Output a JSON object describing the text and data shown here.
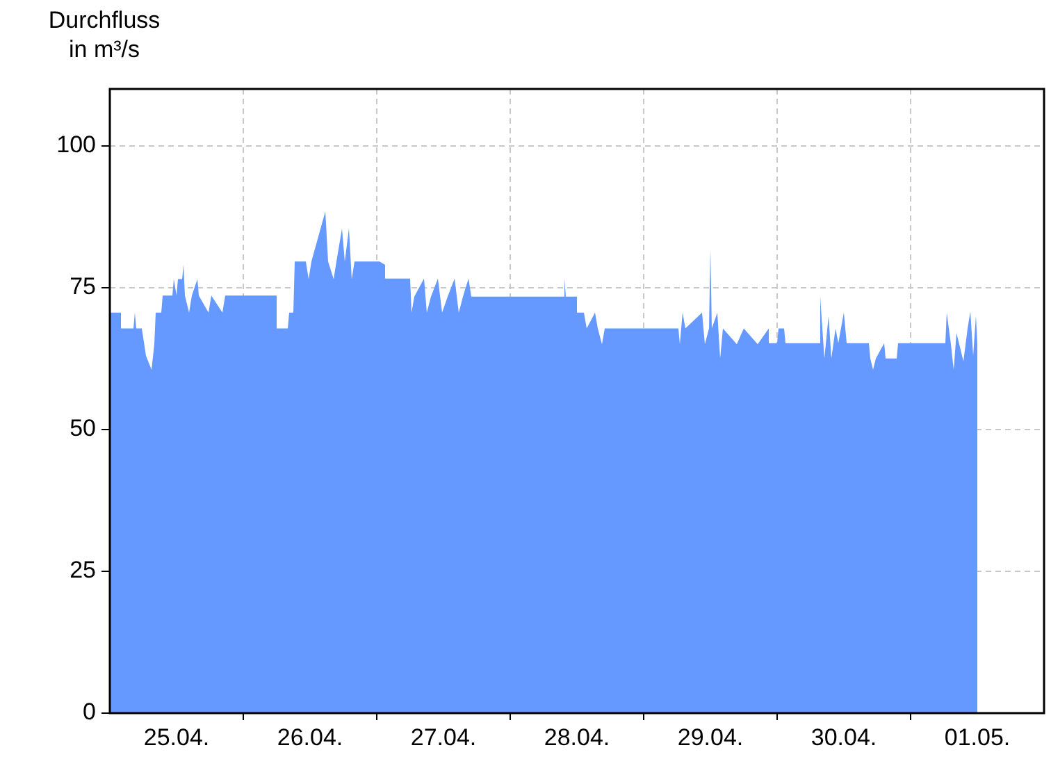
{
  "chart_data": {
    "type": "area",
    "ylabel": "Durchfluss\nin m³/s",
    "x": [
      "--04-25T00:00",
      "--04-25T02:00",
      "--04-25T02:00",
      "--04-25T04:15",
      "--04-25T04:30",
      "--04-25T04:45",
      "--04-25T05:45",
      "--04-25T06:30",
      "--04-25T07:30",
      "--04-25T08:00",
      "--04-25T08:15",
      "--04-25T09:15",
      "--04-25T09:30",
      "--04-25T11:15",
      "--04-25T11:30",
      "--04-25T12:00",
      "--04-25T12:15",
      "--04-25T13:00",
      "--04-25T13:15",
      "--04-25T13:30",
      "--04-25T14:15",
      "--04-25T14:45",
      "--04-25T15:45",
      "--04-25T16:00",
      "--04-25T17:45",
      "--04-25T18:15",
      "--04-25T20:15",
      "--04-25T20:45",
      "--04-26T06:00",
      "--04-26T06:00",
      "--04-26T08:00",
      "--04-26T08:15",
      "--04-26T09:00",
      "--04-26T09:15",
      "--04-26T11:15",
      "--04-26T11:45",
      "--04-26T12:15",
      "--04-26T14:45",
      "--04-26T15:15",
      "--04-26T16:15",
      "--04-26T16:45",
      "--04-26T17:45",
      "--04-26T18:15",
      "--04-26T19:00",
      "--04-26T19:30",
      "--04-26T20:00",
      "--04-27T00:30",
      "--04-27T01:30",
      "--04-27T01:30",
      "--04-27T06:00",
      "--04-27T06:15",
      "--04-27T06:45",
      "--04-27T08:30",
      "--04-27T09:00",
      "--04-27T09:45",
      "--04-27T11:00",
      "--04-27T11:45",
      "--04-27T12:45",
      "--04-27T14:00",
      "--04-27T14:45",
      "--04-27T15:30",
      "--04-27T16:30",
      "--04-27T17:00",
      "--04-28T09:45",
      "--04-28T09:45",
      "--04-28T10:00",
      "--04-28T12:00",
      "--04-28T12:00",
      "--04-28T13:15",
      "--04-28T13:45",
      "--04-28T15:15",
      "--04-28T15:45",
      "--04-28T16:30",
      "--04-28T17:00",
      "--04-28T22:00",
      "--04-29T06:15",
      "--04-29T06:30",
      "--04-29T07:00",
      "--04-29T07:30",
      "--04-29T10:30",
      "--04-29T11:00",
      "--04-29T11:45",
      "--04-29T12:00",
      "--04-29T12:15",
      "--04-29T13:15",
      "--04-29T13:45",
      "--04-29T14:15",
      "--04-29T16:45",
      "--04-29T18:00",
      "--04-29T20:30",
      "--04-29T22:30",
      "--04-29T22:30",
      "--04-30T00:00",
      "--04-30T00:15",
      "--04-30T01:15",
      "--04-30T01:30",
      "--04-30T07:45",
      "--04-30T07:45",
      "--04-30T08:30",
      "--04-30T09:15",
      "--04-30T09:45",
      "--04-30T10:30",
      "--04-30T11:00",
      "--04-30T12:00",
      "--04-30T12:30",
      "--04-30T16:30",
      "--04-30T16:45",
      "--04-30T17:15",
      "--04-30T17:45",
      "--04-30T19:15",
      "--04-30T19:30",
      "--04-30T21:30",
      "--04-30T21:45",
      "--05-01T06:15",
      "--05-01T06:30",
      "--05-01T07:15",
      "--05-01T07:45",
      "--05-01T08:15",
      "--05-01T08:45",
      "--05-01T09:30",
      "--05-01T10:15",
      "--05-01T10:45",
      "--05-01T11:15",
      "--05-01T11:45",
      "--05-01T12:00"
    ],
    "series": [
      {
        "color": "#6699ff",
        "values": [
          70.6,
          70.6,
          67.8,
          67.8,
          70.6,
          67.8,
          67.8,
          63,
          60.5,
          65,
          70.6,
          70.6,
          73.6,
          73.6,
          76.5,
          73.6,
          76.5,
          76.5,
          79,
          73.6,
          70.6,
          73.6,
          76.5,
          73.6,
          70.6,
          73.6,
          70.6,
          73.6,
          73.6,
          67.8,
          67.8,
          70.6,
          70.6,
          79.6,
          79.6,
          76.5,
          79.6,
          88.4,
          79.6,
          76.5,
          79.6,
          85.4,
          79.6,
          85.4,
          76.5,
          79.6,
          79.6,
          79,
          76.6,
          76.6,
          70.6,
          73.4,
          76.6,
          70.6,
          73.4,
          76.6,
          70.6,
          73.4,
          76.6,
          70.6,
          73.4,
          76.6,
          73.4,
          73.4,
          76.6,
          73.4,
          73.4,
          70.6,
          70.6,
          67.8,
          70.6,
          67.8,
          65,
          67.8,
          67.8,
          67.8,
          65,
          70.6,
          67.8,
          70.6,
          65,
          67.8,
          81.8,
          67.8,
          70.6,
          62.5,
          67.8,
          65,
          67.8,
          65,
          67.8,
          65.2,
          65.2,
          67.8,
          67.8,
          65.2,
          65.2,
          73.3,
          62.5,
          70,
          62.5,
          67.8,
          65.2,
          70.6,
          65.2,
          65.2,
          62.5,
          60.5,
          62.5,
          65.2,
          62.5,
          62.5,
          65.2,
          65.2,
          70.6,
          65,
          60.5,
          67,
          65,
          62,
          67.8,
          70.8,
          63,
          70,
          65
        ]
      }
    ],
    "xlim": [
      "--04-25T00:00",
      "--05-02T00:00"
    ],
    "xticks": [
      {
        "value": "--04-26",
        "label": null
      },
      {
        "value": "--04-27",
        "label": null
      },
      {
        "value": "--04-28",
        "label": null
      },
      {
        "value": "--04-29",
        "label": null
      },
      {
        "value": "--04-30",
        "label": null
      },
      {
        "value": "--05-01",
        "label": null
      },
      {
        "value": "--04-25T12:00",
        "label": "25.04."
      },
      {
        "value": "--04-26T12:00",
        "label": "26.04."
      },
      {
        "value": "--04-27T12:00",
        "label": "27.04."
      },
      {
        "value": "--04-28T12:00",
        "label": "28.04."
      },
      {
        "value": "--04-29T12:00",
        "label": "29.04."
      },
      {
        "value": "--04-30T12:00",
        "label": "30.04."
      },
      {
        "value": "--05-01T12:00",
        "label": "01.05."
      }
    ],
    "ylim": [
      0,
      110
    ],
    "yticks": [
      0,
      25,
      50,
      75,
      100
    ],
    "grid": true,
    "legend": false
  }
}
